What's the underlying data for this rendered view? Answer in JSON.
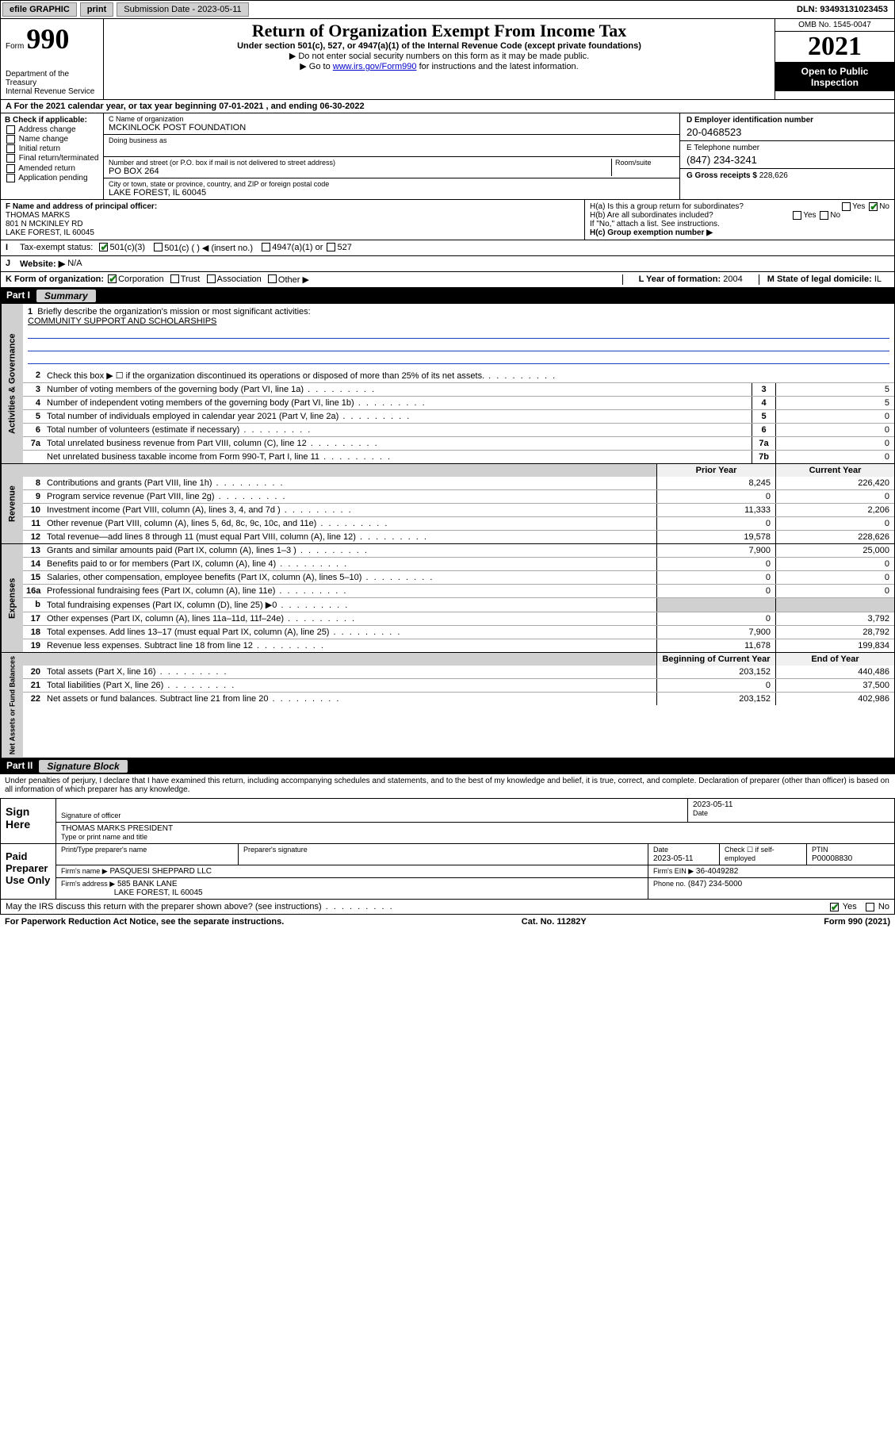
{
  "topbar": {
    "efile": "efile GRAPHIC",
    "print": "print",
    "subdate_label": "Submission Date - 2023-05-11",
    "dln": "DLN: 93493131023453"
  },
  "header": {
    "form_prefix": "Form",
    "form_no": "990",
    "dept": "Department of the Treasury",
    "irs": "Internal Revenue Service",
    "title": "Return of Organization Exempt From Income Tax",
    "sub1": "Under section 501(c), 527, or 4947(a)(1) of the Internal Revenue Code (except private foundations)",
    "sub2": "▶ Do not enter social security numbers on this form as it may be made public.",
    "sub3_pre": "▶ Go to ",
    "sub3_link": "www.irs.gov/Form990",
    "sub3_post": " for instructions and the latest information.",
    "omb": "OMB No. 1545-0047",
    "year": "2021",
    "open": "Open to Public Inspection"
  },
  "rowA": "A For the 2021 calendar year, or tax year beginning 07-01-2021   , and ending 06-30-2022",
  "B": {
    "label": "B Check if applicable:",
    "opts": [
      "Address change",
      "Name change",
      "Initial return",
      "Final return/terminated",
      "Amended return",
      "Application pending"
    ]
  },
  "C": {
    "name_lab": "C Name of organization",
    "name": "MCKINLOCK POST FOUNDATION",
    "dba_lab": "Doing business as",
    "dba": "",
    "addr_lab": "Number and street (or P.O. box if mail is not delivered to street address)",
    "room_lab": "Room/suite",
    "addr": "PO BOX 264",
    "city_lab": "City or town, state or province, country, and ZIP or foreign postal code",
    "city": "LAKE FOREST, IL  60045"
  },
  "D": {
    "lab": "D Employer identification number",
    "val": "20-0468523"
  },
  "E": {
    "lab": "E Telephone number",
    "val": "(847) 234-3241"
  },
  "G": {
    "lab": "G Gross receipts $",
    "val": "228,626"
  },
  "F": {
    "lab": "F  Name and address of principal officer:",
    "l1": "THOMAS MARKS",
    "l2": "801 N MCKINLEY RD",
    "l3": "LAKE FOREST, IL  60045"
  },
  "H": {
    "a": "H(a)  Is this a group return for subordinates?",
    "a_yes": "Yes",
    "a_no": "No",
    "b": "H(b)  Are all subordinates included?",
    "note": "If \"No,\" attach a list. See instructions.",
    "c": "H(c)  Group exemption number ▶"
  },
  "I": {
    "lab": "Tax-exempt status:",
    "o1": "501(c)(3)",
    "o2": "501(c) (  ) ◀ (insert no.)",
    "o3": "4947(a)(1) or",
    "o4": "527"
  },
  "J": {
    "lab": "Website: ▶",
    "val": "N/A"
  },
  "K": {
    "lab": "K Form of organization:",
    "o1": "Corporation",
    "o2": "Trust",
    "o3": "Association",
    "o4": "Other ▶"
  },
  "L": {
    "lab": "L Year of formation:",
    "val": "2004"
  },
  "M": {
    "lab": "M State of legal domicile:",
    "val": "IL"
  },
  "part1": {
    "num": "Part I",
    "title": "Summary"
  },
  "mission": {
    "num": "1",
    "lab": "Briefly describe the organization's mission or most significant activities:",
    "text": "COMMUNITY SUPPORT AND SCHOLARSHIPS"
  },
  "lines_gov": [
    {
      "n": "2",
      "d": "Check this box ▶ ☐  if the organization discontinued its operations or disposed of more than 25% of its net assets.",
      "b": "",
      "v": ""
    },
    {
      "n": "3",
      "d": "Number of voting members of the governing body (Part VI, line 1a)",
      "b": "3",
      "v": "5"
    },
    {
      "n": "4",
      "d": "Number of independent voting members of the governing body (Part VI, line 1b)",
      "b": "4",
      "v": "5"
    },
    {
      "n": "5",
      "d": "Total number of individuals employed in calendar year 2021 (Part V, line 2a)",
      "b": "5",
      "v": "0"
    },
    {
      "n": "6",
      "d": "Total number of volunteers (estimate if necessary)",
      "b": "6",
      "v": "0"
    },
    {
      "n": "7a",
      "d": "Total unrelated business revenue from Part VIII, column (C), line 12",
      "b": "7a",
      "v": "0"
    },
    {
      "n": "",
      "d": "Net unrelated business taxable income from Form 990-T, Part I, line 11",
      "b": "7b",
      "v": "0"
    }
  ],
  "pyhdr": {
    "py": "Prior Year",
    "cy": "Current Year"
  },
  "rev": {
    "label": "Revenue",
    "lines": [
      {
        "n": "8",
        "d": "Contributions and grants (Part VIII, line 1h)",
        "py": "8,245",
        "cy": "226,420"
      },
      {
        "n": "9",
        "d": "Program service revenue (Part VIII, line 2g)",
        "py": "0",
        "cy": "0"
      },
      {
        "n": "10",
        "d": "Investment income (Part VIII, column (A), lines 3, 4, and 7d )",
        "py": "11,333",
        "cy": "2,206"
      },
      {
        "n": "11",
        "d": "Other revenue (Part VIII, column (A), lines 5, 6d, 8c, 9c, 10c, and 11e)",
        "py": "0",
        "cy": "0"
      },
      {
        "n": "12",
        "d": "Total revenue—add lines 8 through 11 (must equal Part VIII, column (A), line 12)",
        "py": "19,578",
        "cy": "228,626"
      }
    ]
  },
  "exp": {
    "label": "Expenses",
    "lines": [
      {
        "n": "13",
        "d": "Grants and similar amounts paid (Part IX, column (A), lines 1–3 )",
        "py": "7,900",
        "cy": "25,000"
      },
      {
        "n": "14",
        "d": "Benefits paid to or for members (Part IX, column (A), line 4)",
        "py": "0",
        "cy": "0"
      },
      {
        "n": "15",
        "d": "Salaries, other compensation, employee benefits (Part IX, column (A), lines 5–10)",
        "py": "0",
        "cy": "0"
      },
      {
        "n": "16a",
        "d": "Professional fundraising fees (Part IX, column (A), line 11e)",
        "py": "0",
        "cy": "0"
      },
      {
        "n": "b",
        "d": "Total fundraising expenses (Part IX, column (D), line 25) ▶0",
        "py": "",
        "cy": "",
        "shade": true
      },
      {
        "n": "17",
        "d": "Other expenses (Part IX, column (A), lines 11a–11d, 11f–24e)",
        "py": "0",
        "cy": "3,792"
      },
      {
        "n": "18",
        "d": "Total expenses. Add lines 13–17 (must equal Part IX, column (A), line 25)",
        "py": "7,900",
        "cy": "28,792"
      },
      {
        "n": "19",
        "d": "Revenue less expenses. Subtract line 18 from line 12",
        "py": "11,678",
        "cy": "199,834"
      }
    ]
  },
  "na": {
    "label": "Net Assets or Fund Balances",
    "hdr": {
      "py": "Beginning of Current Year",
      "cy": "End of Year"
    },
    "lines": [
      {
        "n": "20",
        "d": "Total assets (Part X, line 16)",
        "py": "203,152",
        "cy": "440,486"
      },
      {
        "n": "21",
        "d": "Total liabilities (Part X, line 26)",
        "py": "0",
        "cy": "37,500"
      },
      {
        "n": "22",
        "d": "Net assets or fund balances. Subtract line 21 from line 20",
        "py": "203,152",
        "cy": "402,986"
      }
    ]
  },
  "part2": {
    "num": "Part II",
    "title": "Signature Block"
  },
  "decl": "Under penalties of perjury, I declare that I have examined this return, including accompanying schedules and statements, and to the best of my knowledge and belief, it is true, correct, and complete. Declaration of preparer (other than officer) is based on all information of which preparer has any knowledge.",
  "sign": {
    "lab": "Sign Here",
    "sig_lab": "Signature of officer",
    "date_lab": "Date",
    "date": "2023-05-11",
    "name": "THOMAS MARKS  PRESIDENT",
    "name_lab": "Type or print name and title"
  },
  "prep": {
    "lab": "Paid Preparer Use Only",
    "h1": "Print/Type preparer's name",
    "h2": "Preparer's signature",
    "h3": "Date",
    "h3v": "2023-05-11",
    "h4": "Check ☐ if self-employed",
    "h5": "PTIN",
    "h5v": "P00008830",
    "firm_lab": "Firm's name   ▶",
    "firm": "PASQUESI SHEPPARD LLC",
    "ein_lab": "Firm's EIN ▶",
    "ein": "36-4049282",
    "addr_lab": "Firm's address ▶",
    "addr1": "585 BANK LANE",
    "addr2": "LAKE FOREST, IL  60045",
    "ph_lab": "Phone no.",
    "ph": "(847) 234-5000"
  },
  "may": "May the IRS discuss this return with the preparer shown above? (see instructions)",
  "footer": {
    "l": "For Paperwork Reduction Act Notice, see the separate instructions.",
    "c": "Cat. No. 11282Y",
    "r": "Form 990 (2021)"
  },
  "colors": {
    "bg": "#ffffff",
    "border": "#000000",
    "shade": "#d0d0d0",
    "link": "#0000cc",
    "check": "#1a7f1a"
  }
}
